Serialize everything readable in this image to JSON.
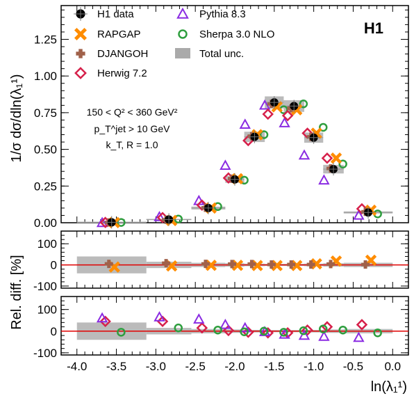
{
  "chart_data": [
    {
      "type": "scatter",
      "panel": "main",
      "experiment_label": "H1",
      "ylabel": "1/σ dσ/dln(λ₁¹)",
      "xlabel": "ln(λ₁¹)",
      "annotations": [
        "150 < Q² < 360 GeV²",
        "p_T^jet > 10 GeV",
        "k_T, R = 1.0"
      ],
      "xlim": [
        -4.2,
        0.2
      ],
      "ylim": [
        0,
        1.48
      ],
      "y_ticks": [
        "0.00",
        "0.25",
        "0.50",
        "0.75",
        "1.00",
        "1.25"
      ],
      "x_ticks": [
        "-4.0",
        "-3.5",
        "-3.0",
        "-2.5",
        "-2.0",
        "-1.5",
        "-1.0",
        "-0.5",
        "0.0"
      ],
      "legend_placement": "top-left",
      "bins": [
        [
          -4.0,
          -3.12
        ],
        [
          -3.12,
          -2.55
        ],
        [
          -2.55,
          -2.12
        ],
        [
          -2.12,
          -1.88
        ],
        [
          -1.88,
          -1.62
        ],
        [
          -1.62,
          -1.38
        ],
        [
          -1.38,
          -1.12
        ],
        [
          -1.12,
          -0.88
        ],
        [
          -0.88,
          -0.62
        ],
        [
          -0.62,
          0.0
        ]
      ],
      "series": [
        {
          "name": "H1 data",
          "marker": "filled-circle",
          "color": "#000000",
          "offset": 0,
          "values": [
            0.003,
            0.022,
            0.1,
            0.295,
            0.585,
            0.82,
            0.795,
            0.58,
            0.365,
            0.07
          ]
        },
        {
          "name": "RAPGAP",
          "marker": "cross",
          "color": "#ff8c00",
          "offset": 0.035,
          "values": [
            0.001,
            0.015,
            0.1,
            0.3,
            0.6,
            0.79,
            0.77,
            0.61,
            0.44,
            0.085
          ]
        },
        {
          "name": "DJANGOH",
          "marker": "plus",
          "color": "#a0614a",
          "offset": -0.035,
          "values": [
            0.002,
            0.02,
            0.102,
            0.3,
            0.59,
            0.81,
            0.78,
            0.585,
            0.37,
            0.075
          ]
        },
        {
          "name": "Herwig 7.2",
          "marker": "open-diamond",
          "color": "#d6204a",
          "offset": -0.08,
          "values": [
            0.002,
            0.035,
            0.12,
            0.305,
            0.56,
            0.74,
            0.73,
            0.61,
            0.44,
            0.095
          ]
        },
        {
          "name": "Pythia 8.3",
          "marker": "open-triangle",
          "color": "#8a2be2",
          "offset": -0.12,
          "values": [
            0.0,
            0.04,
            0.15,
            0.39,
            0.67,
            0.8,
            0.68,
            0.46,
            0.29,
            0.05
          ]
        },
        {
          "name": "Sherpa 3.0 NLO",
          "marker": "open-circle",
          "color": "#2e9e3e",
          "offset": 0.12,
          "values": [
            0.002,
            0.025,
            0.11,
            0.29,
            0.6,
            0.77,
            0.81,
            0.65,
            0.4,
            0.06
          ]
        },
        {
          "name": "Total unc.",
          "marker": "band",
          "color": "#aaaaaa"
        }
      ]
    },
    {
      "type": "scatter",
      "panel": "ratio-top",
      "ylabel": "Rel. diff. [%]",
      "ylim": [
        -110,
        160
      ],
      "y_ticks": [
        "-100",
        "0",
        "100"
      ],
      "band": [
        40,
        15,
        10,
        8,
        6,
        5,
        5,
        6,
        8,
        10
      ],
      "series": [
        {
          "name": "RAPGAP",
          "values": [
            -10,
            -5,
            -2,
            -2,
            -3,
            -3,
            -3,
            5,
            18,
            22
          ]
        },
        {
          "name": "DJANGOH",
          "values": [
            5,
            8,
            5,
            4,
            4,
            2,
            2,
            2,
            4,
            2
          ]
        }
      ]
    },
    {
      "type": "scatter",
      "panel": "ratio-bottom",
      "ylabel": "Rel. diff. [%]",
      "ylim": [
        -110,
        160
      ],
      "y_ticks": [
        "-100",
        "0",
        "100"
      ],
      "band": [
        40,
        15,
        10,
        8,
        6,
        5,
        5,
        6,
        8,
        10
      ],
      "series": [
        {
          "name": "Herwig 7.2",
          "values": [
            45,
            45,
            15,
            3,
            -5,
            -8,
            -8,
            5,
            20,
            30
          ]
        },
        {
          "name": "Pythia 8.3",
          "values": [
            60,
            65,
            55,
            30,
            15,
            -3,
            -15,
            -20,
            -25,
            -30
          ]
        },
        {
          "name": "Sherpa 3.0 NLO",
          "values": [
            -5,
            15,
            5,
            -3,
            0,
            -5,
            2,
            10,
            5,
            -8
          ]
        }
      ]
    }
  ]
}
